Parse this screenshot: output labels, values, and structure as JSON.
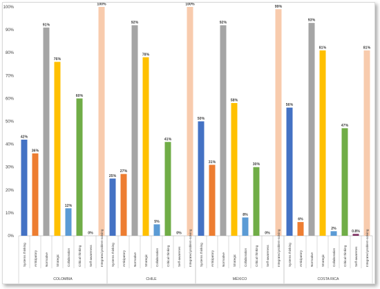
{
  "chart_data": {
    "type": "bar",
    "title": "",
    "xlabel": "",
    "ylabel": "",
    "ylim": [
      0,
      100
    ],
    "yticks": [
      "0%",
      "10%",
      "20%",
      "30%",
      "40%",
      "50%",
      "60%",
      "70%",
      "80%",
      "90%",
      "100%"
    ],
    "grid": false,
    "legend": "none",
    "competencies": [
      "Systems thinking",
      "Anticipatory",
      "Normative",
      "Strategic",
      "Collaboration",
      "Critical thinking",
      "Self-awareness",
      "Integrated problem-solving"
    ],
    "colors": [
      "#4472c4",
      "#ed7d31",
      "#a5a5a5",
      "#ffc000",
      "#5b9bd5",
      "#70ad47",
      "#7b2c5e",
      "#f8cbad"
    ],
    "groups": [
      {
        "country": "COLOMBIA",
        "categories": [
          "Systems thinking",
          "Anticipatory",
          "Normative",
          "Strategic",
          "Collaboration",
          "Critical thinking",
          "Self-awareness",
          "Integrated problem-solving"
        ],
        "values": [
          42,
          36,
          91,
          76,
          12,
          60,
          0,
          100
        ],
        "labels": [
          "42%",
          "36%",
          "91%",
          "76%",
          "12%",
          "60%",
          "0%",
          "100%"
        ]
      },
      {
        "country": "CHILE",
        "categories": [
          "Systems thinking",
          "Anticipatory",
          "Normative",
          "Strategic",
          "Collaboration",
          "Critical thinking",
          "Self-awarenes",
          "Integrated problem-solving"
        ],
        "values": [
          25,
          27,
          92,
          78,
          5,
          41,
          0,
          100
        ],
        "labels": [
          "25%",
          "27%",
          "92%",
          "78%",
          "5%",
          "41%",
          "0%",
          "100%"
        ]
      },
      {
        "country": "MÉXICO",
        "categories": [
          "Systems thinking",
          "Anticipatory",
          "Normative",
          "Strategic",
          "Collaboration",
          "Critical thinking",
          "Self-awareness",
          "Integrated problem-solving"
        ],
        "values": [
          50,
          31,
          92,
          58,
          8,
          30,
          0,
          99
        ],
        "labels": [
          "50%",
          "31%",
          "92%",
          "58%",
          "8%",
          "30%",
          "0%",
          "99%"
        ]
      },
      {
        "country": "COSTA RICA",
        "categories": [
          "Systems thinking",
          "Anticipatory",
          "Normative",
          "Strategic",
          "Collaboration",
          "Critical thinking",
          "Self-awarenes",
          "Integrated problem-solving"
        ],
        "values": [
          56,
          6,
          93,
          81,
          2,
          47,
          0.8,
          81
        ],
        "labels": [
          "56%",
          "6%",
          "93%",
          "81%",
          "2%",
          "47%",
          "0.8%",
          "81%"
        ]
      }
    ]
  }
}
